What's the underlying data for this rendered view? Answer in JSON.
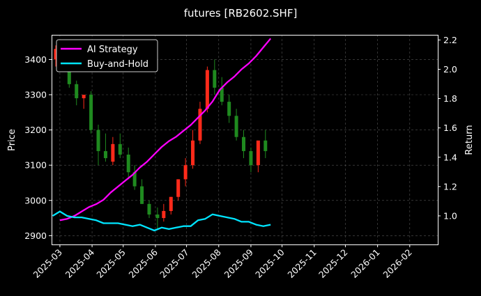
{
  "chart_data": {
    "type": "line",
    "title": "futures [RB2602.SHF]",
    "ylabel_left": "Price",
    "ylabel_right": "Return",
    "x_ticks": [
      "2025-03",
      "2025-04",
      "2025-05",
      "2025-06",
      "2025-07",
      "2025-08",
      "2025-09",
      "2025-10",
      "2025-11",
      "2025-12",
      "2026-01",
      "2026-02"
    ],
    "xlim": [
      "2025-02-21",
      "2026-02-28"
    ],
    "ylim_left": [
      2875,
      3470
    ],
    "ylim_right": [
      0.805,
      2.235
    ],
    "left_ticks": [
      2900,
      3000,
      3100,
      3200,
      3300,
      3400
    ],
    "right_ticks": [
      1.0,
      1.2,
      1.4,
      1.6,
      1.8,
      2.0,
      2.2
    ],
    "grid": true,
    "legend_position": "top-left",
    "colors": {
      "ai_strategy": "#ff00ff",
      "buy_and_hold": "#00e5ff",
      "candle_up": "#ff2a1a",
      "candle_down": "#1f8a1f"
    },
    "candles": {
      "dates": [
        "2025-02-25",
        "2025-03-03",
        "2025-03-10",
        "2025-03-17",
        "2025-03-24",
        "2025-03-31",
        "2025-04-07",
        "2025-04-14",
        "2025-04-21",
        "2025-04-28",
        "2025-05-06",
        "2025-05-12",
        "2025-05-19",
        "2025-05-26",
        "2025-06-03",
        "2025-06-09",
        "2025-06-16",
        "2025-06-23",
        "2025-06-30",
        "2025-07-07",
        "2025-07-14",
        "2025-07-21",
        "2025-07-28",
        "2025-08-04",
        "2025-08-11",
        "2025-08-18",
        "2025-08-25",
        "2025-09-01",
        "2025-09-08",
        "2025-09-15"
      ],
      "open": [
        3400,
        3430,
        3390,
        3330,
        3290,
        3300,
        3200,
        3140,
        3110,
        3160,
        3130,
        3080,
        3040,
        2990,
        2960,
        2950,
        2970,
        3010,
        3060,
        3100,
        3170,
        3260,
        3370,
        3320,
        3280,
        3240,
        3180,
        3140,
        3100,
        3170
      ],
      "high": [
        3440,
        3440,
        3410,
        3340,
        3300,
        3310,
        3215,
        3190,
        3180,
        3190,
        3150,
        3100,
        3060,
        3000,
        2980,
        2990,
        3010,
        3060,
        3120,
        3200,
        3280,
        3380,
        3400,
        3350,
        3300,
        3260,
        3200,
        3150,
        3160,
        3200
      ],
      "low": [
        3380,
        3370,
        3320,
        3270,
        3260,
        3190,
        3100,
        3110,
        3100,
        3120,
        3060,
        3030,
        2990,
        2950,
        2920,
        2940,
        2960,
        3000,
        3040,
        3090,
        3160,
        3250,
        3300,
        3270,
        3220,
        3170,
        3120,
        3080,
        3080,
        3120
      ],
      "close": [
        3430,
        3390,
        3330,
        3290,
        3300,
        3200,
        3140,
        3120,
        3160,
        3130,
        3080,
        3040,
        2990,
        2960,
        2950,
        2970,
        3010,
        3060,
        3100,
        3170,
        3260,
        3370,
        3320,
        3280,
        3240,
        3180,
        3140,
        3100,
        3170,
        3140
      ]
    },
    "series": [
      {
        "name": "AI Strategy",
        "dates": [
          "2025-03-01",
          "2025-03-08",
          "2025-03-15",
          "2025-03-22",
          "2025-03-29",
          "2025-04-05",
          "2025-04-12",
          "2025-04-19",
          "2025-04-26",
          "2025-05-03",
          "2025-05-10",
          "2025-05-17",
          "2025-05-24",
          "2025-05-31",
          "2025-06-07",
          "2025-06-14",
          "2025-06-21",
          "2025-06-28",
          "2025-07-05",
          "2025-07-12",
          "2025-07-19",
          "2025-07-26",
          "2025-08-02",
          "2025-08-09",
          "2025-08-16",
          "2025-08-23",
          "2025-08-30",
          "2025-09-06",
          "2025-09-13",
          "2025-09-20"
        ],
        "values": [
          0.97,
          0.98,
          1.0,
          1.03,
          1.06,
          1.08,
          1.11,
          1.16,
          1.2,
          1.24,
          1.28,
          1.33,
          1.37,
          1.42,
          1.47,
          1.51,
          1.54,
          1.58,
          1.62,
          1.67,
          1.72,
          1.78,
          1.86,
          1.91,
          1.95,
          2.0,
          2.04,
          2.09,
          2.15,
          2.21
        ]
      },
      {
        "name": "Buy-and-Hold",
        "dates": [
          "2025-02-22",
          "2025-03-01",
          "2025-03-08",
          "2025-03-15",
          "2025-03-22",
          "2025-03-29",
          "2025-04-05",
          "2025-04-12",
          "2025-04-19",
          "2025-04-26",
          "2025-05-03",
          "2025-05-10",
          "2025-05-17",
          "2025-05-24",
          "2025-05-31",
          "2025-06-07",
          "2025-06-14",
          "2025-06-21",
          "2025-06-28",
          "2025-07-05",
          "2025-07-12",
          "2025-07-19",
          "2025-07-26",
          "2025-08-02",
          "2025-08-09",
          "2025-08-16",
          "2025-08-23",
          "2025-08-30",
          "2025-09-06",
          "2025-09-13",
          "2025-09-20"
        ],
        "values": [
          1.0,
          1.03,
          1.0,
          0.99,
          0.99,
          0.98,
          0.97,
          0.95,
          0.95,
          0.95,
          0.94,
          0.93,
          0.94,
          0.92,
          0.9,
          0.92,
          0.91,
          0.92,
          0.93,
          0.93,
          0.97,
          0.98,
          1.01,
          1.0,
          0.99,
          0.98,
          0.96,
          0.96,
          0.94,
          0.93,
          0.94
        ]
      }
    ]
  }
}
